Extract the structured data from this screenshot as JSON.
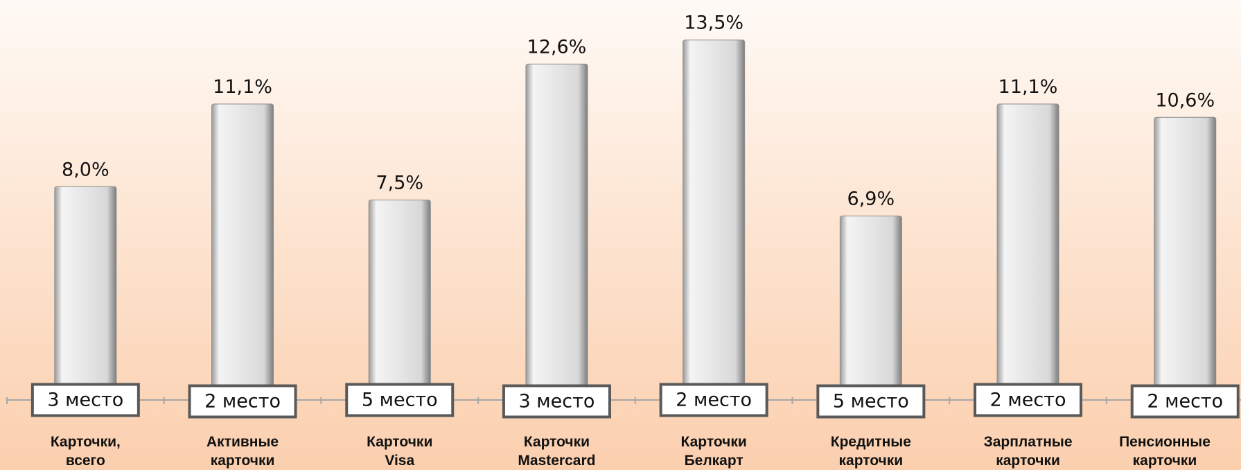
{
  "chart_data": {
    "type": "bar",
    "categories": [
      "Карточки,\nвсего",
      "Активные\nкарточки",
      "Карточки\nVisa",
      "Карточки\nMastercard",
      "Карточки\nБелкарт",
      "Кредитные\nкарточки",
      "Зарплатные\nкарточки",
      "Пенсионные\nкарточки"
    ],
    "values": [
      8.0,
      11.1,
      7.5,
      12.6,
      13.5,
      6.9,
      11.1,
      10.6
    ],
    "value_labels": [
      "8,0%",
      "11,1%",
      "7,5%",
      "12,6%",
      "13,5%",
      "6,9%",
      "11,1%",
      "10,6%"
    ],
    "annotations": [
      "3 место",
      "2 место",
      "5 место",
      "3 место",
      "2 место",
      "5 место",
      "2 место",
      "2 место"
    ],
    "color": "#e6e6e6",
    "ylim": [
      0,
      15
    ]
  }
}
